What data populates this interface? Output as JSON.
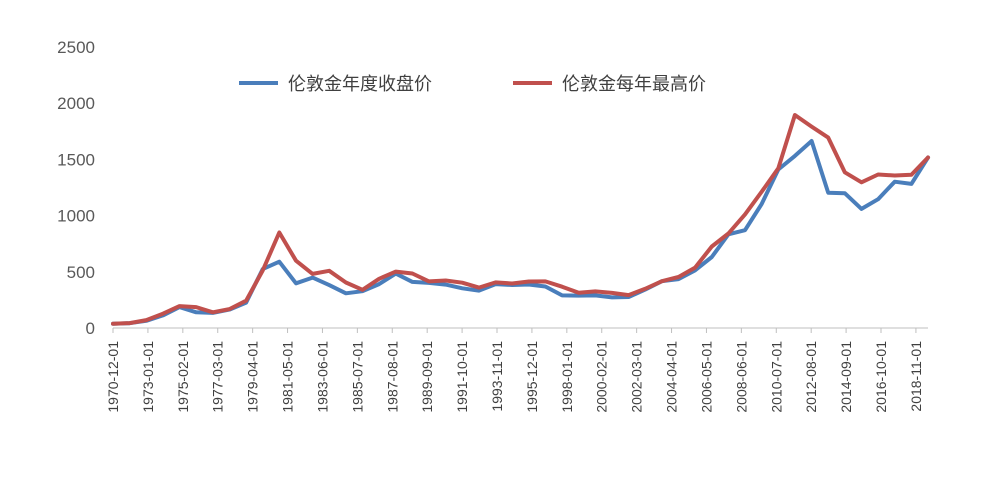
{
  "chart_data": {
    "type": "line",
    "title": "",
    "xlabel": "",
    "ylabel": "",
    "ylim": [
      0,
      2500
    ],
    "yticks": [
      "0",
      "500",
      "1000",
      "1500",
      "2000",
      "2500"
    ],
    "grid": false,
    "legend_position": "top-center",
    "x_tick_labels": [
      "1970-12-01",
      "1973-01-01",
      "1975-02-01",
      "1977-03-01",
      "1979-04-01",
      "1981-05-01",
      "1983-06-01",
      "1985-07-01",
      "1987-08-01",
      "1989-09-01",
      "1991-10-01",
      "1993-11-01",
      "1995-12-01",
      "1998-01-01",
      "2000-02-01",
      "2002-03-01",
      "2004-04-01",
      "2006-05-01",
      "2008-06-01",
      "2010-07-01",
      "2012-08-01",
      "2014-09-01",
      "2016-10-01",
      "2018-11-01"
    ],
    "x": [
      "1970",
      "1971",
      "1972",
      "1973",
      "1974",
      "1975",
      "1976",
      "1977",
      "1978",
      "1979",
      "1980",
      "1981",
      "1982",
      "1983",
      "1984",
      "1985",
      "1986",
      "1987",
      "1988",
      "1989",
      "1990",
      "1991",
      "1992",
      "1993",
      "1994",
      "1995",
      "1996",
      "1997",
      "1998",
      "1999",
      "2000",
      "2001",
      "2002",
      "2003",
      "2004",
      "2005",
      "2006",
      "2007",
      "2008",
      "2009",
      "2010",
      "2011",
      "2012",
      "2013",
      "2014",
      "2015",
      "2016",
      "2017",
      "2018",
      "2019"
    ],
    "series": [
      {
        "name": "伦敦金年度收盘价",
        "color": "#4a7ebb",
        "values": [
          37,
          43,
          64,
          112,
          186,
          140,
          134,
          164,
          226,
          524,
          590,
          398,
          448,
          382,
          309,
          327,
          391,
          484,
          410,
          401,
          386,
          353,
          333,
          391,
          383,
          387,
          369,
          290,
          288,
          290,
          272,
          276,
          342,
          416,
          435,
          513,
          632,
          834,
          870,
          1104,
          1410,
          1531,
          1664,
          1204,
          1199,
          1060,
          1146,
          1302,
          1282,
          1517
        ]
      },
      {
        "name": "伦敦金每年最高价",
        "color": "#c0504d",
        "values": [
          38,
          44,
          70,
          127,
          195,
          186,
          140,
          168,
          243,
          512,
          850,
          599,
          481,
          509,
          405,
          340,
          438,
          502,
          485,
          415,
          423,
          403,
          359,
          406,
          396,
          414,
          415,
          367,
          313,
          326,
          312,
          293,
          349,
          416,
          454,
          537,
          725,
          841,
          1011,
          1213,
          1421,
          1895,
          1792,
          1694,
          1385,
          1296,
          1366,
          1357,
          1363,
          1517
        ]
      }
    ]
  }
}
